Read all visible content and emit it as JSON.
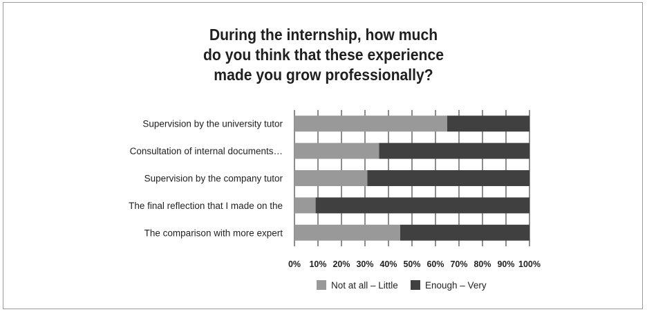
{
  "chart_data": {
    "type": "bar",
    "stacked": true,
    "orientation": "horizontal",
    "title_lines": [
      "During the internship, how much",
      "do you think that these experience",
      "made you grow professionally?"
    ],
    "categories": [
      "Supervision by the university tutor",
      "Consultation of internal documents…",
      "Supervision by the company tutor",
      "The final reflection that I made on the",
      "The comparison with more expert"
    ],
    "series": [
      {
        "name": "Not at all – Little",
        "color": "#999999",
        "values": [
          65,
          36,
          31,
          9,
          45
        ]
      },
      {
        "name": "Enough – Very",
        "color": "#404040",
        "values": [
          35,
          64,
          69,
          91,
          55
        ]
      }
    ],
    "x_ticks": [
      "0%",
      "10%",
      "20%",
      "30%",
      "40%",
      "50%",
      "60%",
      "70%",
      "80%",
      "90%",
      "100%"
    ],
    "xlim": [
      0,
      100
    ],
    "grid": true,
    "legend_position": "bottom"
  }
}
